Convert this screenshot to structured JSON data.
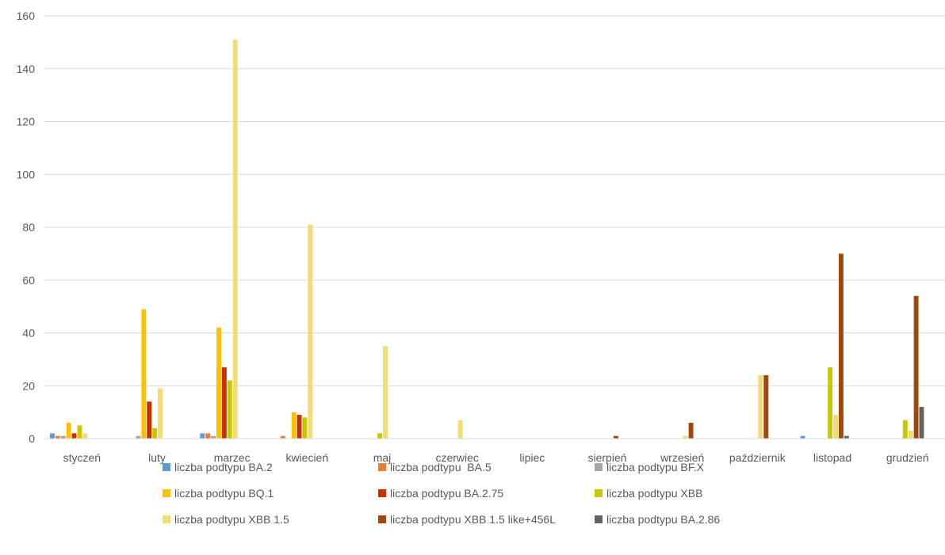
{
  "chart_data": {
    "type": "bar",
    "title": "",
    "xlabel": "",
    "ylabel": "",
    "ylim": [
      0,
      160
    ],
    "yticks": [
      0,
      20,
      40,
      60,
      80,
      100,
      120,
      140,
      160
    ],
    "grid": true,
    "legend_position": "bottom",
    "categories": [
      "styczeń",
      "luty",
      "marzec",
      "kwiecień",
      "maj",
      "czerwiec",
      "lipiec",
      "sierpień",
      "wrzesień",
      "październik",
      "listopad",
      "grudzień"
    ],
    "series": [
      {
        "name": "liczba podtypu BA.2",
        "color": "#5B9BD5",
        "values": [
          2,
          0,
          2,
          0,
          0,
          0,
          0,
          0,
          0,
          0,
          1,
          0
        ]
      },
      {
        "name": "liczba podtypu  BA.5",
        "color": "#ED7D31",
        "values": [
          1,
          0,
          2,
          1,
          0,
          0,
          0,
          0,
          0,
          0,
          0,
          0
        ]
      },
      {
        "name": "liczba podtypu BF.X",
        "color": "#A5A5A5",
        "values": [
          1,
          1,
          1,
          0,
          0,
          0,
          0,
          0,
          0,
          0,
          0,
          0
        ]
      },
      {
        "name": "liczba podtypu BQ.1",
        "color": "#FFC000",
        "values": [
          6,
          49,
          42,
          10,
          0,
          0,
          0,
          0,
          0,
          0,
          0,
          0
        ]
      },
      {
        "name": "liczba podtypu BA.2.75",
        "color": "#C83000",
        "values": [
          2,
          14,
          27,
          9,
          0,
          0,
          0,
          0,
          0,
          0,
          0,
          0
        ]
      },
      {
        "name": "liczba podtypu XBB",
        "color": "#C8C800",
        "values": [
          5,
          4,
          22,
          8,
          2,
          0,
          0,
          0,
          0,
          0,
          27,
          7
        ]
      },
      {
        "name": "liczba podtypu XBB 1.5",
        "color": "#F2DC78",
        "values": [
          2,
          19,
          151,
          81,
          35,
          7,
          0,
          0,
          1,
          24,
          9,
          3
        ]
      },
      {
        "name": "liczba podtypu XBB 1.5 like+456L",
        "color": "#9E480E",
        "values": [
          0,
          0,
          0,
          0,
          0,
          0,
          0,
          1,
          6,
          24,
          70,
          54
        ]
      },
      {
        "name": "liczba podtypu BA.2.86",
        "color": "#636363",
        "values": [
          0,
          0,
          0,
          0,
          0,
          0,
          0,
          0,
          0,
          0,
          1,
          12
        ]
      }
    ]
  }
}
